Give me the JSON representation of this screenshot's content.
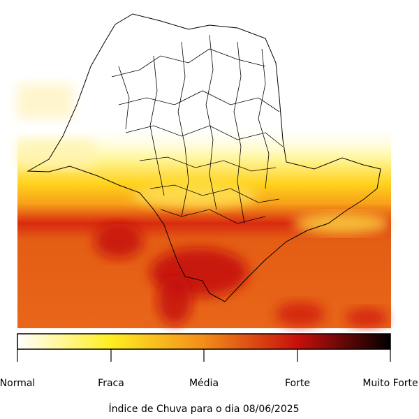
{
  "colorbar": {
    "labels": [
      "Normal",
      "Fraca",
      "Média",
      "Forte",
      "Muito Forte"
    ]
  },
  "caption": "Índice de Chuva para o dia 08/06/2025"
}
